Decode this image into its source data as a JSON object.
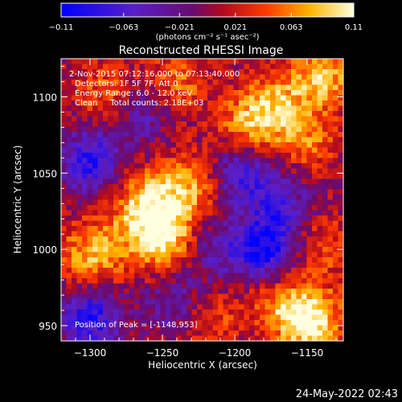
{
  "chart_data": {
    "type": "heatmap",
    "title": "Reconstructed RHESSI Image",
    "xlabel": "Heliocentric X (arcsec)",
    "ylabel": "Heliocentric Y (arcsec)",
    "xlim": [
      -1320,
      -1125
    ],
    "ylim": [
      940,
      1125
    ],
    "x_ticks": [
      -1300,
      -1250,
      -1200,
      -1150
    ],
    "y_ticks": [
      950,
      1000,
      1050,
      1100
    ],
    "x_tick_labels": [
      "−1300",
      "−1250",
      "−1200",
      "−1150"
    ],
    "y_tick_labels": [
      "950",
      "1000",
      "1050",
      "1100"
    ],
    "colorbar": {
      "range": [
        -0.11,
        0.11
      ],
      "ticks": [
        -0.11,
        -0.063,
        -0.021,
        0.021,
        0.063,
        0.11
      ],
      "tick_labels": [
        "−0.11",
        "−0.063",
        "−0.021",
        "0.021",
        "0.063",
        "0.11"
      ],
      "unit_label": "(photons cm⁻² s⁻¹ asec⁻²)",
      "colormap": "blue-purple-red-orange-yellow-white"
    },
    "annotations": [
      "2-Nov-2015 07:12:16.000 to 07:13:40.000",
      "Detectors: 1F 5F 7F, Att 0",
      "Energy Range: 6.0 - 12.0 keV",
      "Clean     Total counts: 2.18E+03"
    ],
    "peak_label": "Position of Peak = [-1148,953]",
    "peak_position": [
      -1148,
      953
    ],
    "grid": false,
    "sources": [
      {
        "x": -1250,
        "y": 1008,
        "value": 0.1
      },
      {
        "x": -1262,
        "y": 1030,
        "value": 0.08
      },
      {
        "x": -1232,
        "y": 1040,
        "value": 0.07
      },
      {
        "x": -1290,
        "y": 1000,
        "value": 0.05
      },
      {
        "x": -1305,
        "y": 995,
        "value": 0.04
      },
      {
        "x": -1190,
        "y": 1082,
        "value": 0.07
      },
      {
        "x": -1170,
        "y": 1095,
        "value": 0.06
      },
      {
        "x": -1140,
        "y": 1115,
        "value": 0.08
      },
      {
        "x": -1150,
        "y": 1072,
        "value": 0.05
      },
      {
        "x": -1148,
        "y": 953,
        "value": 0.11
      },
      {
        "x": -1170,
        "y": 965,
        "value": 0.05
      },
      {
        "x": -1140,
        "y": 1002,
        "value": 0.04
      },
      {
        "x": -1218,
        "y": 955,
        "value": 0.04
      },
      {
        "x": -1285,
        "y": 1100,
        "value": 0.06
      },
      {
        "x": -1240,
        "y": 1110,
        "value": 0.05
      },
      {
        "x": -1300,
        "y": 1058,
        "value": -0.09
      },
      {
        "x": -1268,
        "y": 1090,
        "value": -0.06
      },
      {
        "x": -1300,
        "y": 955,
        "value": -0.09
      },
      {
        "x": -1195,
        "y": 1050,
        "value": -0.07
      },
      {
        "x": -1178,
        "y": 1000,
        "value": -0.1
      },
      {
        "x": -1212,
        "y": 1000,
        "value": -0.05
      },
      {
        "x": -1168,
        "y": 1030,
        "value": -0.06
      },
      {
        "x": -1240,
        "y": 965,
        "value": -0.05
      }
    ]
  },
  "footer": {
    "date": "24-May-2022 02:43"
  }
}
